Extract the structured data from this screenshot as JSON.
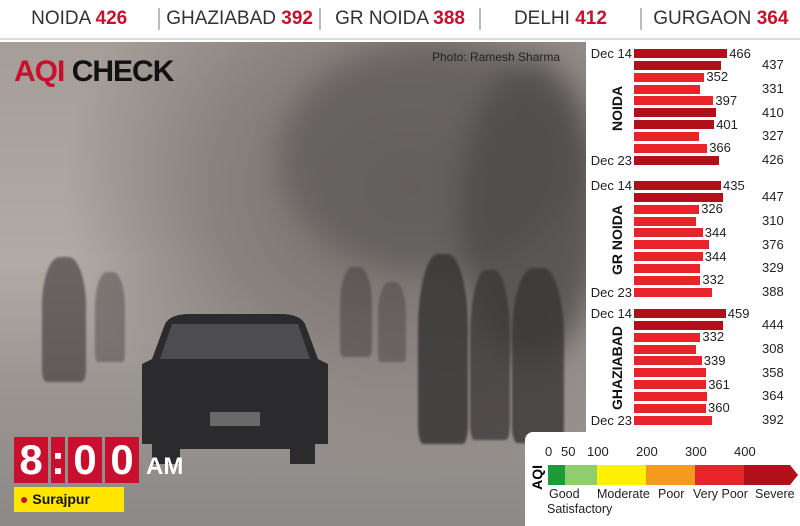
{
  "header": {
    "cities": [
      {
        "name": "NOIDA",
        "value": "426"
      },
      {
        "name": "GHAZIABAD",
        "value": "392"
      },
      {
        "name": "GR NOIDA",
        "value": "388"
      },
      {
        "name": "DELHI",
        "value": "412"
      },
      {
        "name": "GURGAON",
        "value": "364"
      }
    ]
  },
  "photo": {
    "title_part1": "AQI",
    "title_part2": "CHECK",
    "credit": "Photo: Ramesh Sharma",
    "time": {
      "d1": "8",
      "d2": "0",
      "d3": "0",
      "ampm": "AM"
    },
    "location": "Surajpur"
  },
  "colors": {
    "severe": "#b0101a",
    "very_poor": "#e8232a",
    "poor": "#f39a1f",
    "moderate": "#fff200",
    "satisfactory": "#8fcd6f",
    "good": "#1f9a3a"
  },
  "chart_data": {
    "type": "bar",
    "orientation": "horizontal",
    "date_range_labels": [
      "Dec 14",
      "Dec 23"
    ],
    "groups": [
      {
        "name": "NOIDA",
        "values": [
          466,
          437,
          352,
          331,
          397,
          410,
          401,
          327,
          366,
          426
        ]
      },
      {
        "name": "GR NOIDA",
        "values": [
          435,
          447,
          326,
          310,
          344,
          376,
          344,
          329,
          332,
          388
        ]
      },
      {
        "name": "GHAZIABAD",
        "values": [
          459,
          444,
          332,
          308,
          339,
          358,
          361,
          364,
          360,
          392
        ]
      }
    ]
  },
  "legend": {
    "axis_label": "AQI",
    "ticks": [
      "0",
      "50",
      "100",
      "200",
      "300",
      "400"
    ],
    "categories": [
      "Good",
      "Satisfactory",
      "Moderate",
      "Poor",
      "Very Poor",
      "Severe"
    ]
  }
}
